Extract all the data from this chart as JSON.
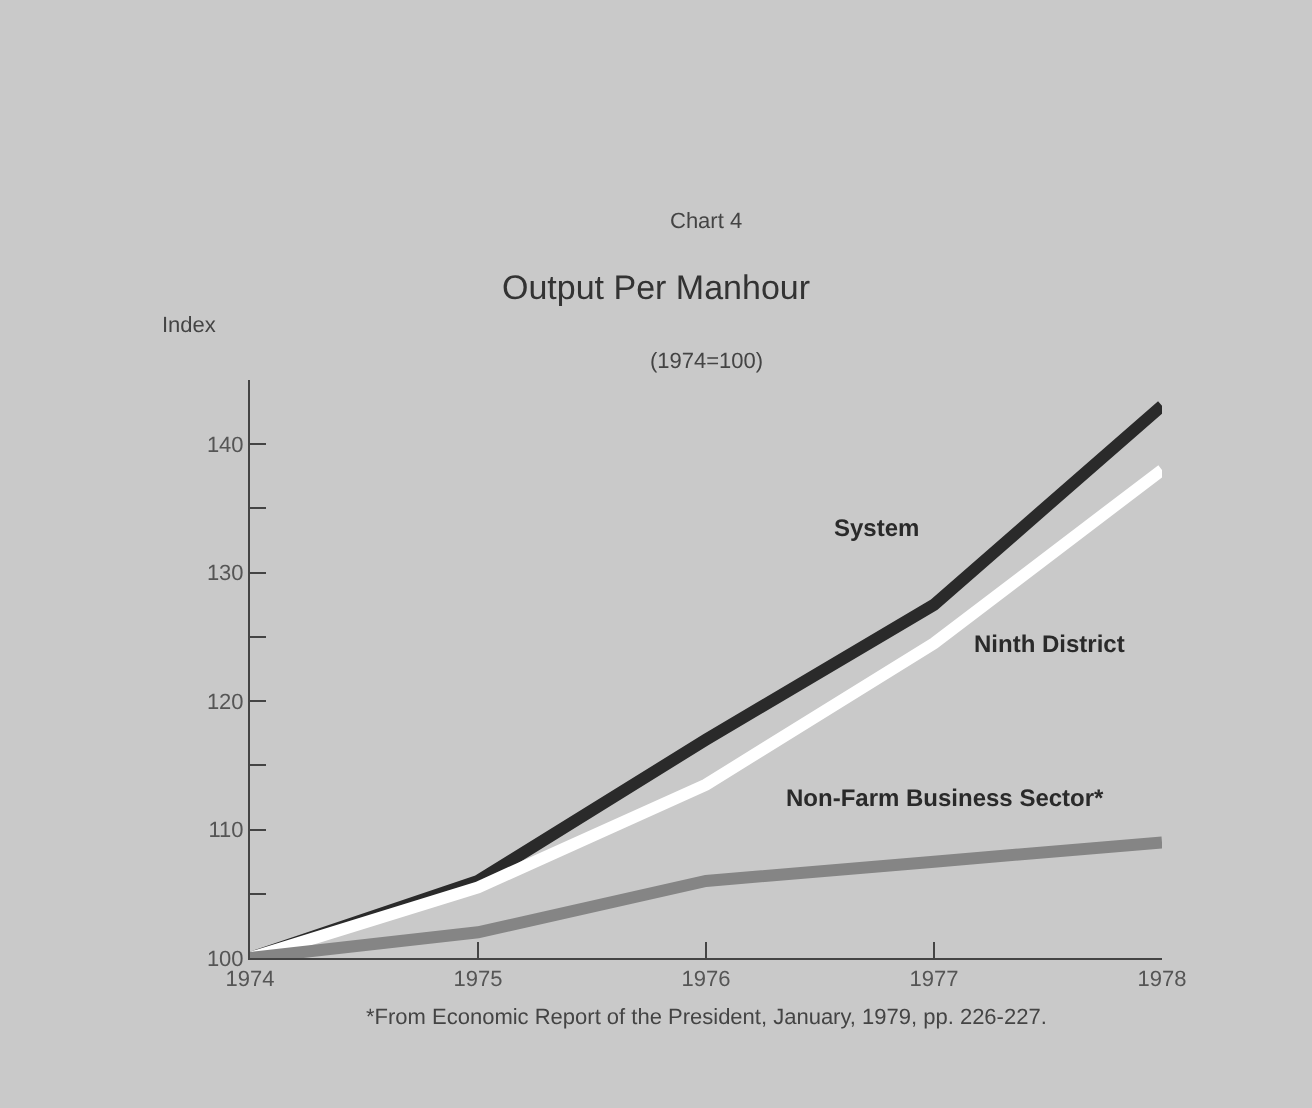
{
  "chart_data": {
    "type": "line",
    "title": "Output Per Manhour",
    "subtitle": "(1974=100)",
    "ylabel": "Index",
    "annotations": [
      "Chart 4",
      "*From Economic Report of the President, January, 1979, pp. 226-227."
    ],
    "x": [
      1974,
      1975,
      1976,
      1977,
      1978
    ],
    "series": [
      {
        "name": "System",
        "color": "#2a2a2a",
        "values": [
          100,
          106,
          117,
          127.5,
          143
        ]
      },
      {
        "name": "Ninth District",
        "color": "#ffffff",
        "values": [
          100,
          105.5,
          113.5,
          124.5,
          138
        ]
      },
      {
        "name": "Non-Farm Business Sector*",
        "color": "#858585",
        "values": [
          100,
          102,
          106,
          107.5,
          109
        ]
      }
    ],
    "xlim": [
      1974,
      1978
    ],
    "xticks": [
      1974,
      1975,
      1976,
      1977,
      1978
    ],
    "ylim": [
      100,
      145
    ],
    "yticks": [
      100,
      {
        "value": 105,
        "label": null
      },
      110,
      {
        "value": 115,
        "label": null
      },
      120,
      {
        "value": 125,
        "label": null
      },
      130,
      {
        "value": 135,
        "label": null
      },
      140
    ],
    "grid": false,
    "legend": false,
    "marker": "none",
    "line_style": "solid"
  }
}
